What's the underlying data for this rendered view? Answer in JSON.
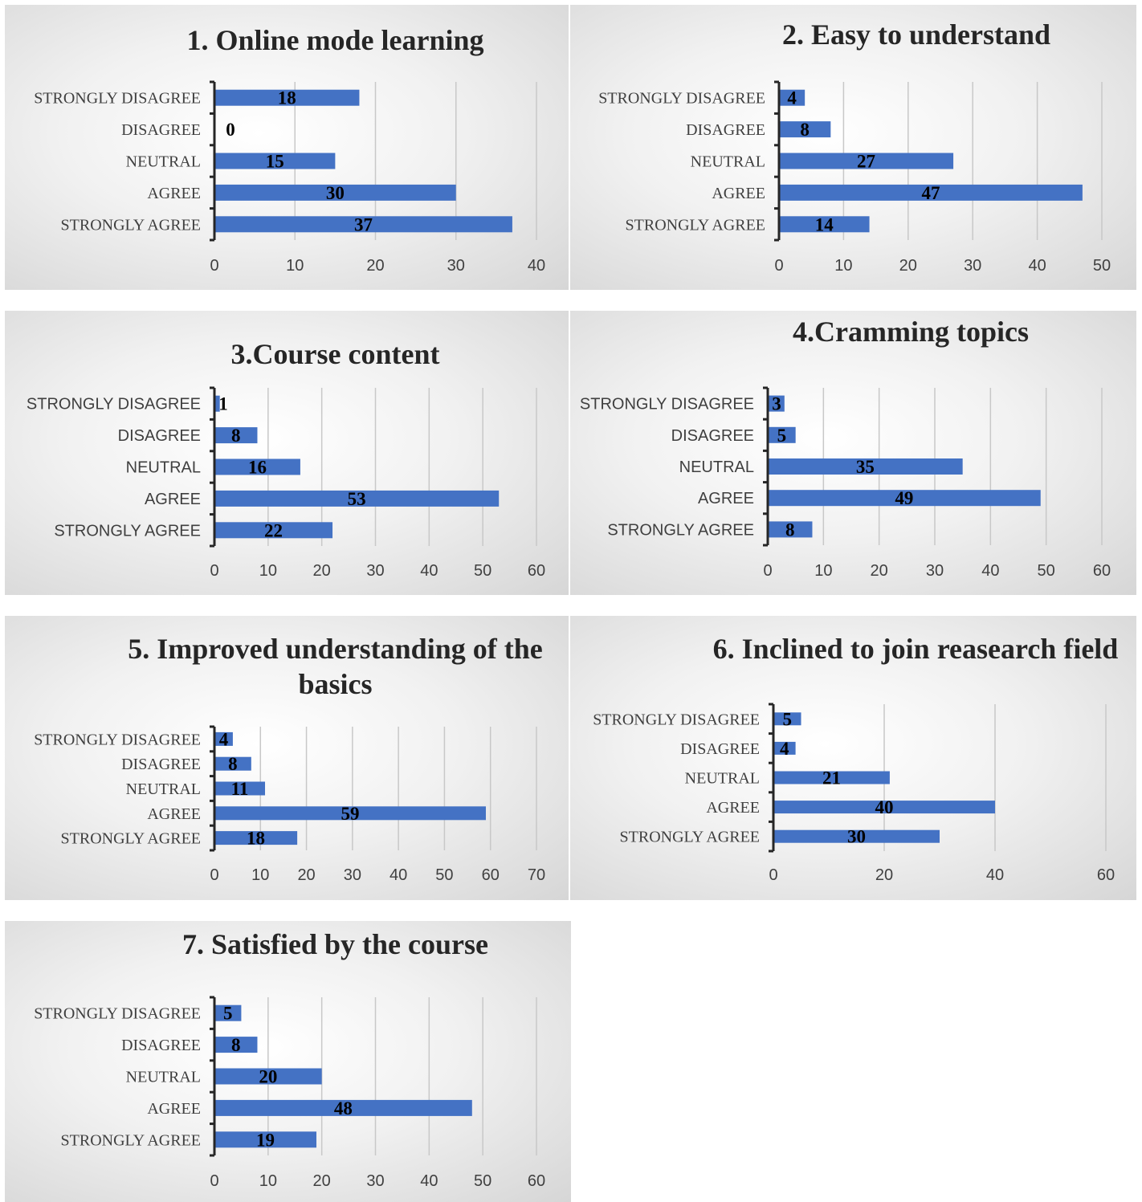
{
  "chart_data": [
    {
      "type": "bar",
      "title": "1. Online mode learning",
      "categories": [
        "STRONGLY DISAGREE",
        "DISAGREE",
        "NEUTRAL",
        "AGREE",
        "STRONGLY AGREE"
      ],
      "values": [
        18,
        0,
        15,
        30,
        37
      ],
      "xlim": [
        0,
        40
      ],
      "xticks": [
        0,
        10,
        20,
        30,
        40
      ],
      "bar_color": "#4472C4",
      "grid": true
    },
    {
      "type": "bar",
      "title": "2. Easy to understand",
      "categories": [
        "STRONGLY DISAGREE",
        "DISAGREE",
        "NEUTRAL",
        "AGREE",
        "STRONGLY AGREE"
      ],
      "values": [
        4,
        8,
        27,
        47,
        14
      ],
      "xlim": [
        0,
        50
      ],
      "xticks": [
        0,
        10,
        20,
        30,
        40,
        50
      ],
      "bar_color": "#4472C4",
      "grid": true
    },
    {
      "type": "bar",
      "title": "3.Course content",
      "categories": [
        "STRONGLY DISAGREE",
        "DISAGREE",
        "NEUTRAL",
        "AGREE",
        "STRONGLY AGREE"
      ],
      "values": [
        1,
        8,
        16,
        53,
        22
      ],
      "xlim": [
        0,
        60
      ],
      "xticks": [
        0,
        10,
        20,
        30,
        40,
        50,
        60
      ],
      "bar_color": "#4472C4",
      "grid": true
    },
    {
      "type": "bar",
      "title": "4.Cramming topics",
      "categories": [
        "STRONGLY DISAGREE",
        "DISAGREE",
        "NEUTRAL",
        "AGREE",
        "STRONGLY AGREE"
      ],
      "values": [
        3,
        5,
        35,
        49,
        8
      ],
      "xlim": [
        0,
        60
      ],
      "xticks": [
        0,
        10,
        20,
        30,
        40,
        50,
        60
      ],
      "bar_color": "#4472C4",
      "grid": true
    },
    {
      "type": "bar",
      "title": "5. Improved understanding of the basics",
      "categories": [
        "STRONGLY DISAGREE",
        "DISAGREE",
        "NEUTRAL",
        "AGREE",
        "STRONGLY AGREE"
      ],
      "values": [
        4,
        8,
        11,
        59,
        18
      ],
      "xlim": [
        0,
        70
      ],
      "xticks": [
        0,
        10,
        20,
        30,
        40,
        50,
        60,
        70
      ],
      "bar_color": "#4472C4",
      "grid": true
    },
    {
      "type": "bar",
      "title": "6. Inclined to join reasearch field",
      "categories": [
        "STRONGLY DISAGREE",
        "DISAGREE",
        "NEUTRAL",
        "AGREE",
        "STRONGLY AGREE"
      ],
      "values": [
        5,
        4,
        21,
        40,
        30
      ],
      "xlim": [
        0,
        60
      ],
      "xticks": [
        0,
        20,
        40,
        60
      ],
      "bar_color": "#4472C4",
      "grid": true
    },
    {
      "type": "bar",
      "title": "7. Satisfied by the course",
      "categories": [
        "STRONGLY DISAGREE",
        "DISAGREE",
        "NEUTRAL",
        "AGREE",
        "STRONGLY AGREE"
      ],
      "values": [
        5,
        8,
        20,
        48,
        19
      ],
      "xlim": [
        0,
        60
      ],
      "xticks": [
        0,
        10,
        20,
        30,
        40,
        50,
        60
      ],
      "bar_color": "#4472C4",
      "grid": true
    }
  ]
}
